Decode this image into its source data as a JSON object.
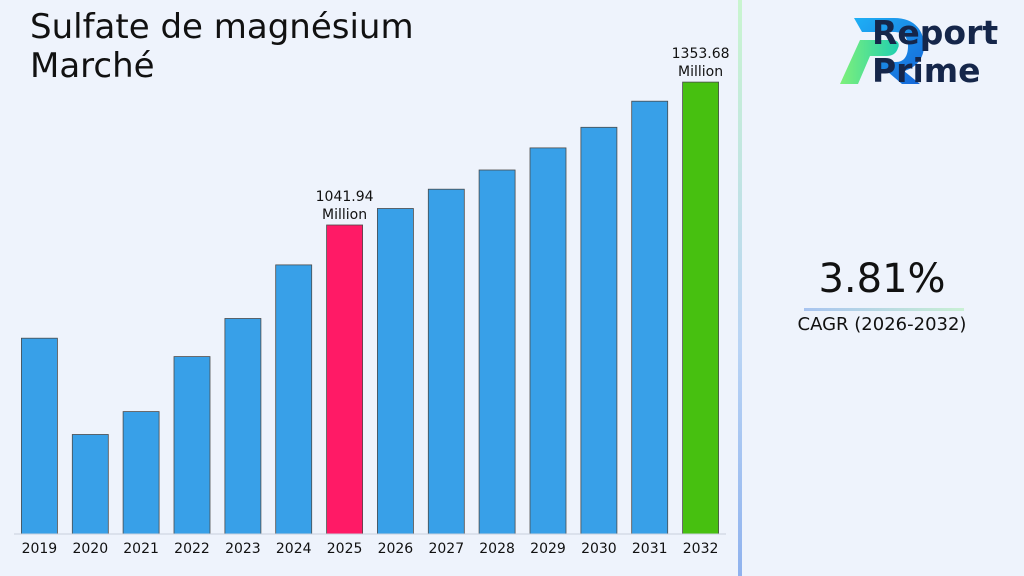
{
  "title_lines": [
    "Sulfate de magnésium",
    "Marché"
  ],
  "brand": {
    "line1": "Report",
    "line2": "Prime"
  },
  "cagr": {
    "value": "3.81%",
    "label": "CAGR (2026-2032)"
  },
  "colors": {
    "bar": "#38a0e8",
    "highlight_2025": "#ff1a66",
    "highlight_2032": "#47c010",
    "logo_blue": "#1fa0f0",
    "logo_green": "#2ee09a",
    "brand_text": "#15264a"
  },
  "chart_data": {
    "type": "bar",
    "title": "Sulfate de magnésium Marché",
    "categories": [
      "2019",
      "2020",
      "2021",
      "2022",
      "2023",
      "2024",
      "2025",
      "2026",
      "2027",
      "2028",
      "2029",
      "2030",
      "2031",
      "2032"
    ],
    "values": [
      795,
      585,
      635,
      755,
      838,
      955,
      1041.94,
      1078,
      1120,
      1162,
      1210,
      1255,
      1312,
      1353.68
    ],
    "bar_colors": [
      "#38a0e8",
      "#38a0e8",
      "#38a0e8",
      "#38a0e8",
      "#38a0e8",
      "#38a0e8",
      "#ff1a66",
      "#38a0e8",
      "#38a0e8",
      "#38a0e8",
      "#38a0e8",
      "#38a0e8",
      "#38a0e8",
      "#47c010"
    ],
    "annotations": [
      {
        "category": "2025",
        "value_text": "1041.94",
        "unit": "Million"
      },
      {
        "category": "2032",
        "value_text": "1353.68",
        "unit": "Million"
      }
    ],
    "ylim": [
      368,
      1380
    ],
    "y_axis_visible": false,
    "grid": false,
    "legend": "none"
  }
}
